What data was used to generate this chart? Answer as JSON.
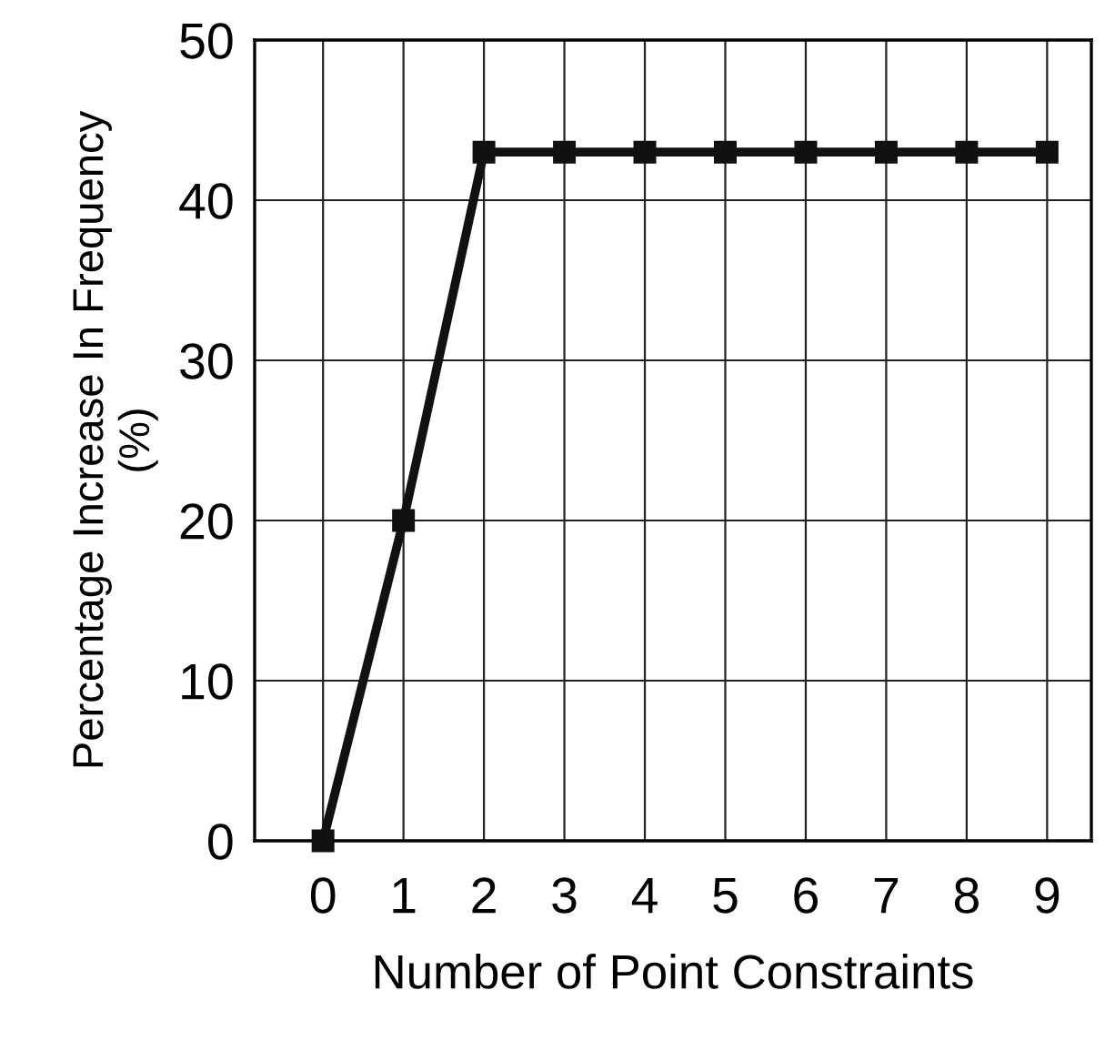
{
  "chart_data": {
    "type": "line",
    "xlabel": "Number of Point Constraints",
    "ylabel": "Percentage Increase In Frequency\n(%)",
    "x": [
      0,
      1,
      2,
      3,
      4,
      5,
      6,
      7,
      8,
      9
    ],
    "series": [
      {
        "color": "#111111",
        "values": [
          0,
          20,
          43,
          43,
          43,
          43,
          43,
          43,
          43,
          43
        ]
      }
    ],
    "xlim": [
      -0.85,
      9.55
    ],
    "xticks": [
      0,
      1,
      2,
      3,
      4,
      5,
      6,
      7,
      8,
      9
    ],
    "ylim": [
      0,
      50
    ],
    "yticks": [
      0,
      10,
      20,
      30,
      40,
      50
    ],
    "grid": true,
    "marker": "square",
    "line_style": "solid"
  }
}
